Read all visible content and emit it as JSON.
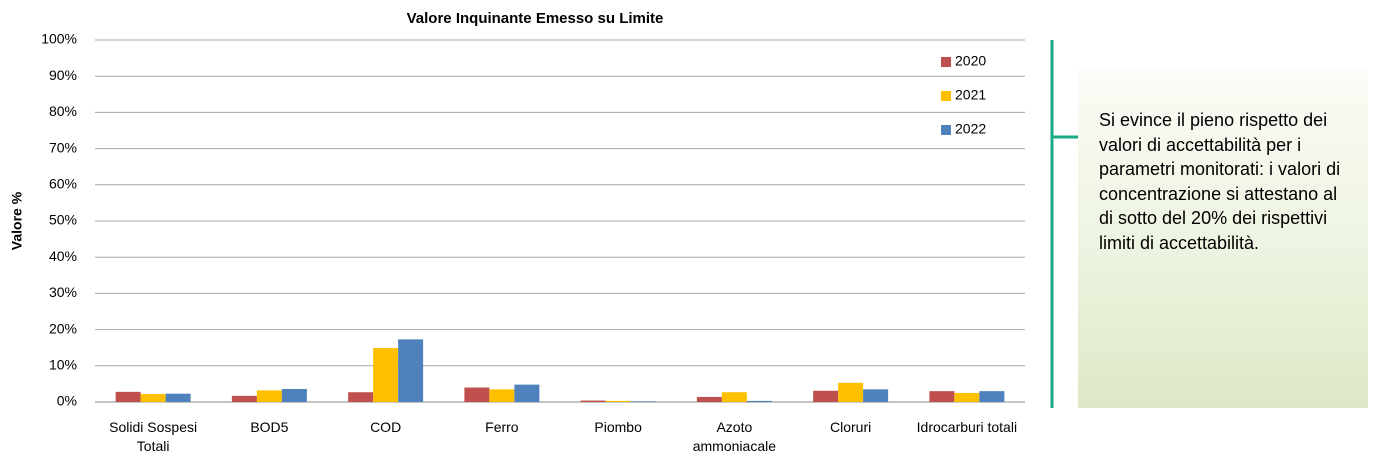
{
  "chart_data": {
    "type": "bar",
    "title": "Valore Inquinante Emesso su Limite",
    "y_label": "Valore %",
    "categories": [
      "Solidi Sospesi Totali",
      "BOD5",
      "COD",
      "Ferro",
      "Piombo",
      "Azoto ammoniacale",
      "Cloruri",
      "Idrocarburi totali"
    ],
    "series": [
      {
        "name": "2020",
        "color": "#c0504d",
        "values": [
          2.8,
          1.7,
          2.7,
          4.0,
          0.4,
          1.4,
          3.1,
          3.0
        ]
      },
      {
        "name": "2021",
        "color": "#ffc000",
        "values": [
          2.2,
          3.2,
          14.9,
          3.5,
          0.3,
          2.7,
          5.3,
          2.5
        ]
      },
      {
        "name": "2022",
        "color": "#4f81bd",
        "values": [
          2.3,
          3.6,
          17.3,
          4.8,
          0.2,
          0.3,
          3.5,
          3.0
        ]
      }
    ],
    "ylim": [
      0,
      100
    ],
    "yticks": [
      {
        "value": 0,
        "label": "0%"
      },
      {
        "value": 10,
        "label": "10%"
      },
      {
        "value": 20,
        "label": "20%"
      },
      {
        "value": 30,
        "label": "30%"
      },
      {
        "value": 40,
        "label": "40%"
      },
      {
        "value": 50,
        "label": "50%"
      },
      {
        "value": 60,
        "label": "60%"
      },
      {
        "value": 70,
        "label": "70%"
      },
      {
        "value": 80,
        "label": "80%"
      },
      {
        "value": 90,
        "label": "90%"
      },
      {
        "value": 100,
        "label": "100%"
      }
    ],
    "grid": true,
    "legend": "upper right",
    "annotation": "Si evince il pieno rispetto dei valori di accettabilità per i parametri monitorati: i valori di concentrazione si attestano al di sotto del 20% dei rispettivi limiti di accettabilità."
  }
}
